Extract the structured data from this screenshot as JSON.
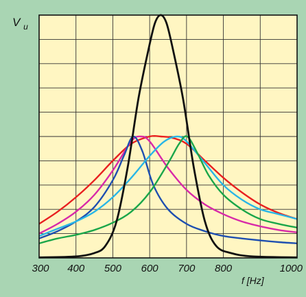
{
  "chart_data": {
    "type": "line",
    "title": "",
    "ylabel": "V",
    "ylabel_subscript": "u",
    "xlabel": "f [Hz]",
    "x_ticks": [
      300,
      400,
      500,
      600,
      700,
      800,
      1000
    ],
    "xlim": [
      300,
      1000
    ],
    "ylim": [
      0,
      10
    ],
    "y_tick_labels": [],
    "grid": true,
    "legend": "none",
    "colors": {
      "background": "#a9d5b3",
      "plot_area": "#fff6c2",
      "grid": "#333333",
      "frame": "#111111"
    },
    "series": [
      {
        "color": "#e82020",
        "x": [
          300,
          350,
          400,
          450,
          500,
          550,
          600,
          630,
          660,
          700,
          750,
          800,
          850,
          900,
          950,
          1000
        ],
        "y": [
          1.4,
          1.9,
          2.5,
          3.2,
          4.0,
          4.7,
          5.0,
          5.0,
          4.95,
          4.7,
          4.0,
          3.3,
          2.7,
          2.2,
          1.85,
          1.6
        ]
      },
      {
        "color": "#d82aa8",
        "x": [
          300,
          350,
          400,
          450,
          500,
          550,
          575,
          600,
          650,
          700,
          750,
          800,
          850,
          900,
          950,
          1000
        ],
        "y": [
          1.0,
          1.4,
          1.9,
          2.6,
          3.6,
          4.8,
          5.0,
          4.8,
          3.7,
          2.8,
          2.2,
          1.8,
          1.5,
          1.3,
          1.15,
          1.05
        ]
      },
      {
        "color": "#1e4fb0",
        "x": [
          300,
          350,
          400,
          450,
          500,
          530,
          555,
          580,
          610,
          650,
          700,
          750,
          800,
          850,
          900,
          950,
          1000
        ],
        "y": [
          0.8,
          1.1,
          1.5,
          2.1,
          3.2,
          4.2,
          5.0,
          4.4,
          3.0,
          2.0,
          1.4,
          1.1,
          0.9,
          0.8,
          0.72,
          0.65,
          0.6
        ]
      },
      {
        "color": "#29b6e6",
        "x": [
          300,
          350,
          400,
          450,
          500,
          550,
          600,
          640,
          675,
          700,
          750,
          800,
          850,
          900,
          950,
          1000
        ],
        "y": [
          0.9,
          1.2,
          1.5,
          1.9,
          2.5,
          3.3,
          4.2,
          4.8,
          5.0,
          4.8,
          3.9,
          3.0,
          2.4,
          2.0,
          1.8,
          1.6
        ]
      },
      {
        "color": "#1aa64a",
        "x": [
          300,
          350,
          400,
          450,
          500,
          550,
          600,
          650,
          680,
          702,
          730,
          760,
          800,
          850,
          900,
          950,
          1000
        ],
        "y": [
          0.6,
          0.8,
          0.95,
          1.15,
          1.45,
          1.9,
          2.7,
          3.9,
          4.7,
          5.0,
          4.3,
          3.4,
          2.6,
          2.0,
          1.6,
          1.4,
          1.25
        ]
      },
      {
        "color": "#111111",
        "x": [
          300,
          400,
          450,
          480,
          510,
          540,
          570,
          600,
          615,
          630,
          645,
          660,
          690,
          720,
          750,
          780,
          820,
          880,
          1000
        ],
        "y": [
          0.02,
          0.06,
          0.2,
          0.5,
          1.5,
          3.7,
          6.6,
          8.8,
          9.7,
          10.0,
          9.7,
          8.8,
          6.6,
          3.7,
          1.5,
          0.5,
          0.2,
          0.06,
          0.02
        ]
      }
    ]
  }
}
